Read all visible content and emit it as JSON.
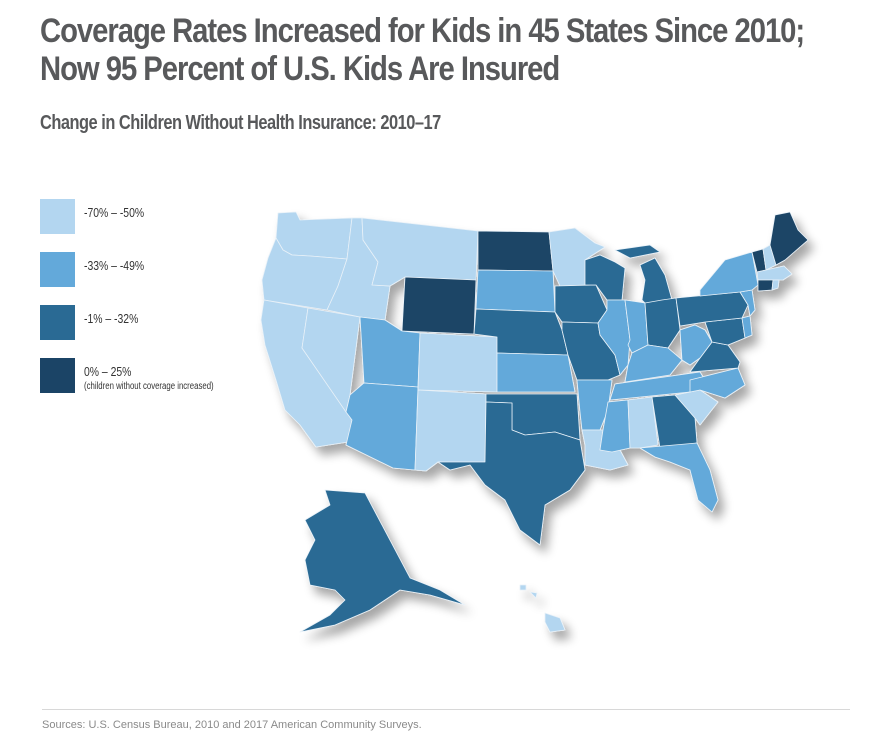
{
  "title": "Coverage Rates Increased for Kids in 45 States Since 2010; Now 95 Percent of U.S. Kids Are Insured",
  "subtitle": "Change in Children Without Health Insurance: 2010–17",
  "source": "Sources: U.S. Census Bureau, 2010 and 2017 American Community Surveys.",
  "legend": [
    {
      "label": "-70% – -50%",
      "note": "",
      "color": "#b3d6f0",
      "class": "c1"
    },
    {
      "label": "-33% – -49%",
      "note": "",
      "color": "#63a9da",
      "class": "c2"
    },
    {
      "label": "-1% – -32%",
      "note": "",
      "color": "#2a6a94",
      "class": "c3"
    },
    {
      "label": "0% – 25%",
      "note": "(children without coverage increased)",
      "color": "#1b4466",
      "class": "c4"
    }
  ],
  "chart_data": {
    "type": "choropleth",
    "title": "Coverage Rates Increased for Kids in 45 States Since 2010; Now 95 Percent of U.S. Kids Are Insured",
    "subtitle": "Change in Children Without Health Insurance: 2010–17",
    "legend_placement": "left",
    "bins": [
      {
        "id": "c1",
        "range": "-70% – -50%"
      },
      {
        "id": "c2",
        "range": "-33% – -49%"
      },
      {
        "id": "c3",
        "range": "-1% – -32%"
      },
      {
        "id": "c4",
        "range": "0% – 25%",
        "note": "children without coverage increased"
      }
    ],
    "states": {
      "WA": "c1",
      "OR": "c1",
      "CA": "c1",
      "NV": "c1",
      "ID": "c1",
      "MT": "c1",
      "WY": "c4",
      "UT": "c2",
      "AZ": "c2",
      "CO": "c1",
      "NM": "c1",
      "ND": "c4",
      "SD": "c2",
      "NE": "c3",
      "KS": "c2",
      "OK": "c3",
      "TX": "c3",
      "MN": "c1",
      "IA": "c3",
      "MO": "c3",
      "AR": "c2",
      "LA": "c1",
      "WI": "c3",
      "IL": "c2",
      "MI": "c3",
      "IN": "c2",
      "OH": "c3",
      "KY": "c2",
      "TN": "c2",
      "MS": "c2",
      "AL": "c1",
      "GA": "c3",
      "FL": "c2",
      "SC": "c1",
      "NC": "c2",
      "VA": "c3",
      "WV": "c2",
      "MD": "c3",
      "DE": "c2",
      "PA": "c3",
      "NJ": "c2",
      "NY": "c2",
      "CT": "c4",
      "RI": "c1",
      "MA": "c1",
      "VT": "c4",
      "NH": "c1",
      "ME": "c4",
      "AK": "c3",
      "HI": "c1",
      "DC": "c1"
    }
  }
}
